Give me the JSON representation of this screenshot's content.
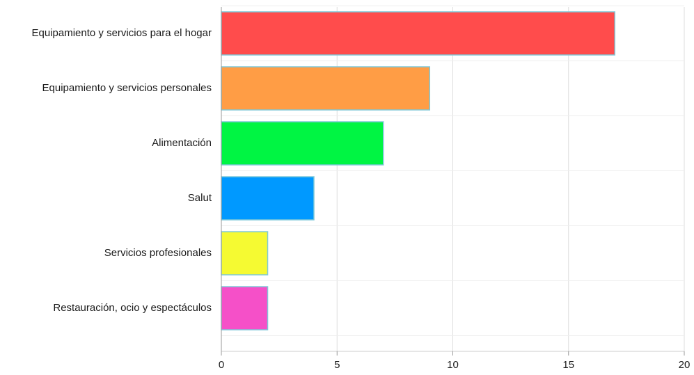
{
  "chart_data": {
    "type": "bar",
    "orientation": "horizontal",
    "categories": [
      "Equipamiento y servicios para el hogar",
      "Equipamiento y servicios personales",
      "Alimentación",
      "Salut",
      "Servicios profesionales",
      "Restauración, ocio y espectáculos"
    ],
    "values": [
      17,
      9,
      7,
      4,
      2,
      2
    ],
    "colors": [
      "#ff4c4c",
      "#ff9d45",
      "#00f543",
      "#0099ff",
      "#f5fa32",
      "#f550c8"
    ],
    "bar_border_color": "#7ec8d8",
    "xlim": [
      0,
      20
    ],
    "xticks": [
      0,
      5,
      10,
      15,
      20
    ],
    "title": "",
    "xlabel": "",
    "ylabel": "",
    "grid": true,
    "legend": "none"
  }
}
